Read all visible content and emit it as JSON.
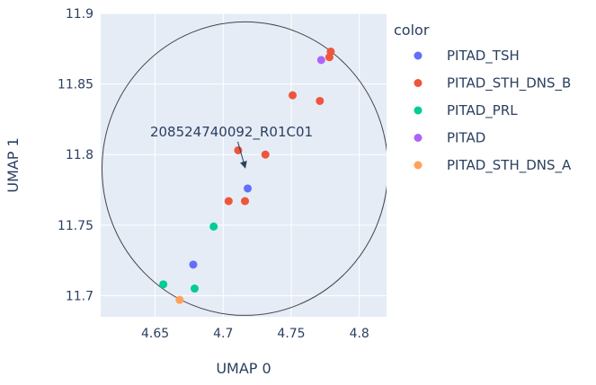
{
  "chart_data": {
    "type": "scatter",
    "xlabel": "UMAP 0",
    "ylabel": "UMAP 1",
    "xlim": [
      4.61,
      4.82
    ],
    "ylim": [
      11.685,
      11.9
    ],
    "x_ticks": [
      4.65,
      4.7,
      4.75,
      4.8
    ],
    "x_tick_labels": [
      "4.65",
      "4.7",
      "4.75",
      "4.8"
    ],
    "y_ticks": [
      11.7,
      11.75,
      11.8,
      11.85,
      11.9
    ],
    "y_tick_labels": [
      "11.7",
      "11.75",
      "11.8",
      "11.85",
      "11.9"
    ],
    "grid": true,
    "plot_bg": "#e5ecf6",
    "legend_title": "color",
    "legend_position": "right",
    "series": [
      {
        "name": "PITAD_TSH",
        "color": "#636efa",
        "points": [
          [
            4.718,
            11.776
          ],
          [
            4.678,
            11.722
          ]
        ]
      },
      {
        "name": "PITAD_STH_DNS_B",
        "color": "#ef553b",
        "points": [
          [
            4.779,
            11.873
          ],
          [
            4.778,
            11.869
          ],
          [
            4.751,
            11.842
          ],
          [
            4.771,
            11.838
          ],
          [
            4.711,
            11.803
          ],
          [
            4.731,
            11.8
          ],
          [
            4.704,
            11.767
          ],
          [
            4.716,
            11.767
          ]
        ]
      },
      {
        "name": "PITAD_PRL",
        "color": "#00cc96",
        "points": [
          [
            4.693,
            11.749
          ],
          [
            4.656,
            11.708
          ],
          [
            4.679,
            11.705
          ]
        ]
      },
      {
        "name": "PITAD",
        "color": "#ab63fa",
        "points": [
          [
            4.772,
            11.867
          ]
        ]
      },
      {
        "name": "PITAD_STH_DNS_A",
        "color": "#ffa15a",
        "points": [
          [
            4.668,
            11.697
          ]
        ]
      }
    ],
    "annotation": {
      "text": "208524740092_R01C01",
      "x": 4.716,
      "y": 11.79,
      "arrow": true
    },
    "circle_shape": {
      "center_x": 4.716,
      "center_y": 11.79,
      "radius_x": 0.105,
      "radius_y": 0.104
    }
  }
}
